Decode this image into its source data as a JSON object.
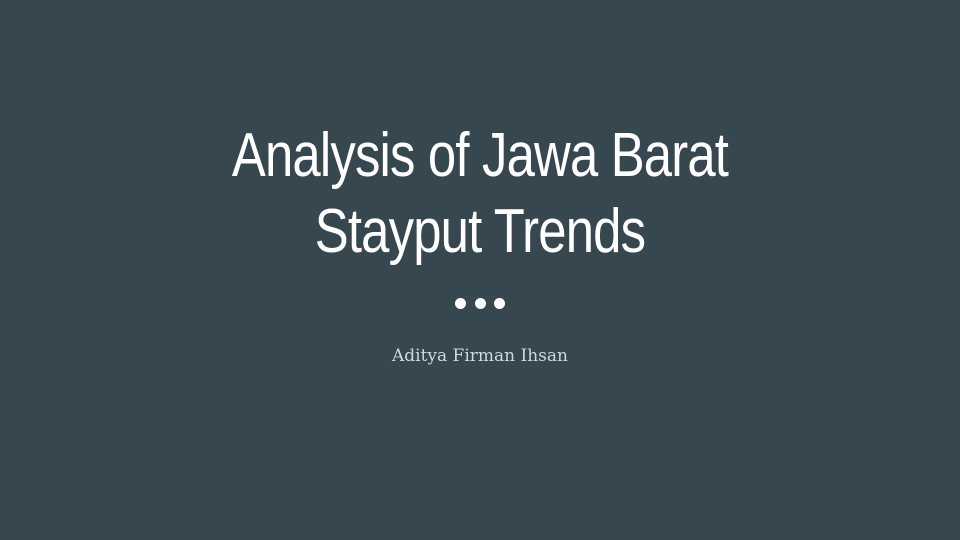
{
  "slide": {
    "title_lines": [
      "Analysis of Jawa Barat",
      "Stayput Trends"
    ],
    "divider_icon": "three-dots-divider-icon",
    "subtitle": "Aditya Firman Ihsan",
    "colors": {
      "background": "#37474f",
      "title": "#ffffff",
      "subtitle": "#cfd8dc"
    }
  }
}
